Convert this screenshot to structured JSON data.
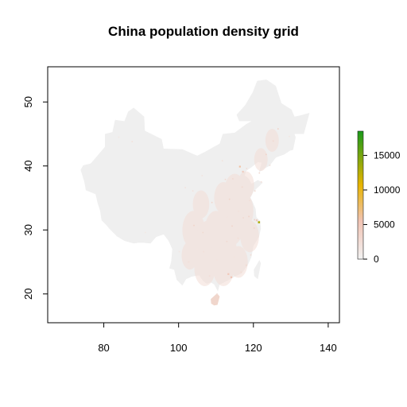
{
  "title": "China population density grid",
  "chart_data": {
    "type": "heatmap",
    "title": "China population density grid",
    "xlabel": "",
    "ylabel": "",
    "xlim": [
      65,
      143
    ],
    "ylim": [
      15.5,
      55.5
    ],
    "x_ticks": [
      80,
      100,
      120,
      140
    ],
    "y_ticks": [
      20,
      30,
      40,
      50
    ],
    "legend": {
      "position": "right",
      "min": 0,
      "max": 18500,
      "ticks": [
        0,
        5000,
        10000,
        15000
      ],
      "colors": [
        "#f2f2f2",
        "#f1c3b3",
        "#e8b400",
        "#1a9a1a"
      ]
    },
    "base_color": "#efefef",
    "outline": [
      [
        73.8,
        39.4
      ],
      [
        74.8,
        37.5
      ],
      [
        75.2,
        36.2
      ],
      [
        77.8,
        35.6
      ],
      [
        78.3,
        34.3
      ],
      [
        79.0,
        33.0
      ],
      [
        79.4,
        31.5
      ],
      [
        80.6,
        30.8
      ],
      [
        81.5,
        30.2
      ],
      [
        83.5,
        29.0
      ],
      [
        85.5,
        28.3
      ],
      [
        88.0,
        27.9
      ],
      [
        89.3,
        28.0
      ],
      [
        90.5,
        28.0
      ],
      [
        92.5,
        27.9
      ],
      [
        94.0,
        28.9
      ],
      [
        96.0,
        29.3
      ],
      [
        97.3,
        28.3
      ],
      [
        98.3,
        27.0
      ],
      [
        98.0,
        25.0
      ],
      [
        97.5,
        24.0
      ],
      [
        98.8,
        23.8
      ],
      [
        99.5,
        22.2
      ],
      [
        101.0,
        21.3
      ],
      [
        102.0,
        22.3
      ],
      [
        103.5,
        22.7
      ],
      [
        105.5,
        22.9
      ],
      [
        106.6,
        22.0
      ],
      [
        107.5,
        21.6
      ],
      [
        108.6,
        21.8
      ],
      [
        109.5,
        21.5
      ],
      [
        110.5,
        20.4
      ],
      [
        111.0,
        21.5
      ],
      [
        112.5,
        21.9
      ],
      [
        113.8,
        22.3
      ],
      [
        115.0,
        22.7
      ],
      [
        116.8,
        23.2
      ],
      [
        118.5,
        24.5
      ],
      [
        119.5,
        25.8
      ],
      [
        120.0,
        27.5
      ],
      [
        121.5,
        28.9
      ],
      [
        122.0,
        30.2
      ],
      [
        121.8,
        31.4
      ],
      [
        120.8,
        32.0
      ],
      [
        120.6,
        33.3
      ],
      [
        119.7,
        34.5
      ],
      [
        119.2,
        35.0
      ],
      [
        120.0,
        36.0
      ],
      [
        121.5,
        36.8
      ],
      [
        122.5,
        37.4
      ],
      [
        121.2,
        37.8
      ],
      [
        119.5,
        37.2
      ],
      [
        118.8,
        38.0
      ],
      [
        117.7,
        38.5
      ],
      [
        118.0,
        39.2
      ],
      [
        119.5,
        39.8
      ],
      [
        121.2,
        40.6
      ],
      [
        122.2,
        40.5
      ],
      [
        121.5,
        39.0
      ],
      [
        122.9,
        39.6
      ],
      [
        124.3,
        40.0
      ],
      [
        126.0,
        41.3
      ],
      [
        128.3,
        41.8
      ],
      [
        129.8,
        42.4
      ],
      [
        130.6,
        42.5
      ],
      [
        131.3,
        44.5
      ],
      [
        131.0,
        45.0
      ],
      [
        132.5,
        45.0
      ],
      [
        133.5,
        45.0
      ],
      [
        135.0,
        48.3
      ],
      [
        132.5,
        47.9
      ],
      [
        131.0,
        47.7
      ],
      [
        130.2,
        48.8
      ],
      [
        127.5,
        49.8
      ],
      [
        126.0,
        52.5
      ],
      [
        123.5,
        53.5
      ],
      [
        121.0,
        53.3
      ],
      [
        119.8,
        51.5
      ],
      [
        117.8,
        49.5
      ],
      [
        115.5,
        48.0
      ],
      [
        116.2,
        47.0
      ],
      [
        119.5,
        47.0
      ],
      [
        118.0,
        46.5
      ],
      [
        115.0,
        45.2
      ],
      [
        111.8,
        45.0
      ],
      [
        111.0,
        43.5
      ],
      [
        107.0,
        42.2
      ],
      [
        105.0,
        41.6
      ],
      [
        101.0,
        42.6
      ],
      [
        96.0,
        42.7
      ],
      [
        95.5,
        44.2
      ],
      [
        91.0,
        45.5
      ],
      [
        90.8,
        47.7
      ],
      [
        88.0,
        49.1
      ],
      [
        86.5,
        48.5
      ],
      [
        85.5,
        47.0
      ],
      [
        83.0,
        47.2
      ],
      [
        82.3,
        45.3
      ],
      [
        80.3,
        45.0
      ],
      [
        80.3,
        43.0
      ],
      [
        78.0,
        41.4
      ],
      [
        76.5,
        40.4
      ],
      [
        74.5,
        40.1
      ]
    ],
    "hainan": [
      [
        108.6,
        19.2
      ],
      [
        110.3,
        20.1
      ],
      [
        111.0,
        19.6
      ],
      [
        110.4,
        18.3
      ],
      [
        109.5,
        18.2
      ],
      [
        108.7,
        18.5
      ]
    ],
    "taiwan": [
      [
        121.6,
        25.3
      ],
      [
        122.0,
        24.8
      ],
      [
        121.2,
        22.3
      ],
      [
        120.2,
        22.8
      ],
      [
        120.1,
        23.8
      ]
    ],
    "hotspots": [
      {
        "x": 116.4,
        "y": 39.9,
        "v": 6000
      },
      {
        "x": 117.2,
        "y": 39.1,
        "v": 4500
      },
      {
        "x": 121.5,
        "y": 31.2,
        "v": 13000
      },
      {
        "x": 120.9,
        "y": 31.5,
        "v": 5000
      },
      {
        "x": 120.2,
        "y": 30.3,
        "v": 3500
      },
      {
        "x": 118.8,
        "y": 32.1,
        "v": 3500
      },
      {
        "x": 120.3,
        "y": 31.6,
        "v": 4000
      },
      {
        "x": 113.3,
        "y": 23.1,
        "v": 5000
      },
      {
        "x": 114.1,
        "y": 22.6,
        "v": 5500
      },
      {
        "x": 114.3,
        "y": 30.6,
        "v": 3500
      },
      {
        "x": 104.1,
        "y": 30.7,
        "v": 3500
      },
      {
        "x": 106.5,
        "y": 29.6,
        "v": 3000
      },
      {
        "x": 113.6,
        "y": 34.8,
        "v": 3500
      },
      {
        "x": 108.9,
        "y": 34.3,
        "v": 3500
      },
      {
        "x": 117.0,
        "y": 36.7,
        "v": 3000
      },
      {
        "x": 120.4,
        "y": 36.1,
        "v": 3000
      },
      {
        "x": 123.4,
        "y": 41.8,
        "v": 3500
      },
      {
        "x": 121.6,
        "y": 38.9,
        "v": 3000
      },
      {
        "x": 126.6,
        "y": 45.8,
        "v": 3500
      },
      {
        "x": 125.3,
        "y": 43.9,
        "v": 3000
      },
      {
        "x": 112.5,
        "y": 37.9,
        "v": 3000
      },
      {
        "x": 114.5,
        "y": 38.0,
        "v": 3000
      },
      {
        "x": 119.3,
        "y": 26.1,
        "v": 2500
      },
      {
        "x": 118.1,
        "y": 24.5,
        "v": 3000
      },
      {
        "x": 112.9,
        "y": 28.2,
        "v": 2800
      },
      {
        "x": 115.9,
        "y": 28.7,
        "v": 2500
      },
      {
        "x": 117.3,
        "y": 31.9,
        "v": 2800
      },
      {
        "x": 108.3,
        "y": 22.8,
        "v": 2500
      },
      {
        "x": 106.7,
        "y": 26.6,
        "v": 2200
      },
      {
        "x": 102.7,
        "y": 25.0,
        "v": 2200
      },
      {
        "x": 103.8,
        "y": 36.1,
        "v": 2000
      },
      {
        "x": 87.6,
        "y": 43.8,
        "v": 2000
      },
      {
        "x": 84.0,
        "y": 44.5,
        "v": 1200
      },
      {
        "x": 91.1,
        "y": 29.6,
        "v": 1200
      },
      {
        "x": 111.7,
        "y": 40.8,
        "v": 2000
      },
      {
        "x": 106.3,
        "y": 38.5,
        "v": 1800
      },
      {
        "x": 101.8,
        "y": 36.6,
        "v": 1800
      },
      {
        "x": 110.3,
        "y": 20.0,
        "v": 2000
      },
      {
        "x": 118.2,
        "y": 39.6,
        "v": 2500
      },
      {
        "x": 116.0,
        "y": 32.9,
        "v": 2000
      },
      {
        "x": 113.0,
        "y": 32.0,
        "v": 1800
      },
      {
        "x": 110.3,
        "y": 25.3,
        "v": 1600
      },
      {
        "x": 116.7,
        "y": 23.4,
        "v": 2600
      },
      {
        "x": 114.9,
        "y": 25.8,
        "v": 1800
      },
      {
        "x": 105.0,
        "y": 27.0,
        "v": 1500
      },
      {
        "x": 100.2,
        "y": 26.6,
        "v": 1300
      },
      {
        "x": 119.0,
        "y": 34.6,
        "v": 2300
      },
      {
        "x": 122.1,
        "y": 37.5,
        "v": 2300
      },
      {
        "x": 124.4,
        "y": 40.1,
        "v": 2000
      },
      {
        "x": 129.6,
        "y": 44.6,
        "v": 1400
      }
    ]
  }
}
